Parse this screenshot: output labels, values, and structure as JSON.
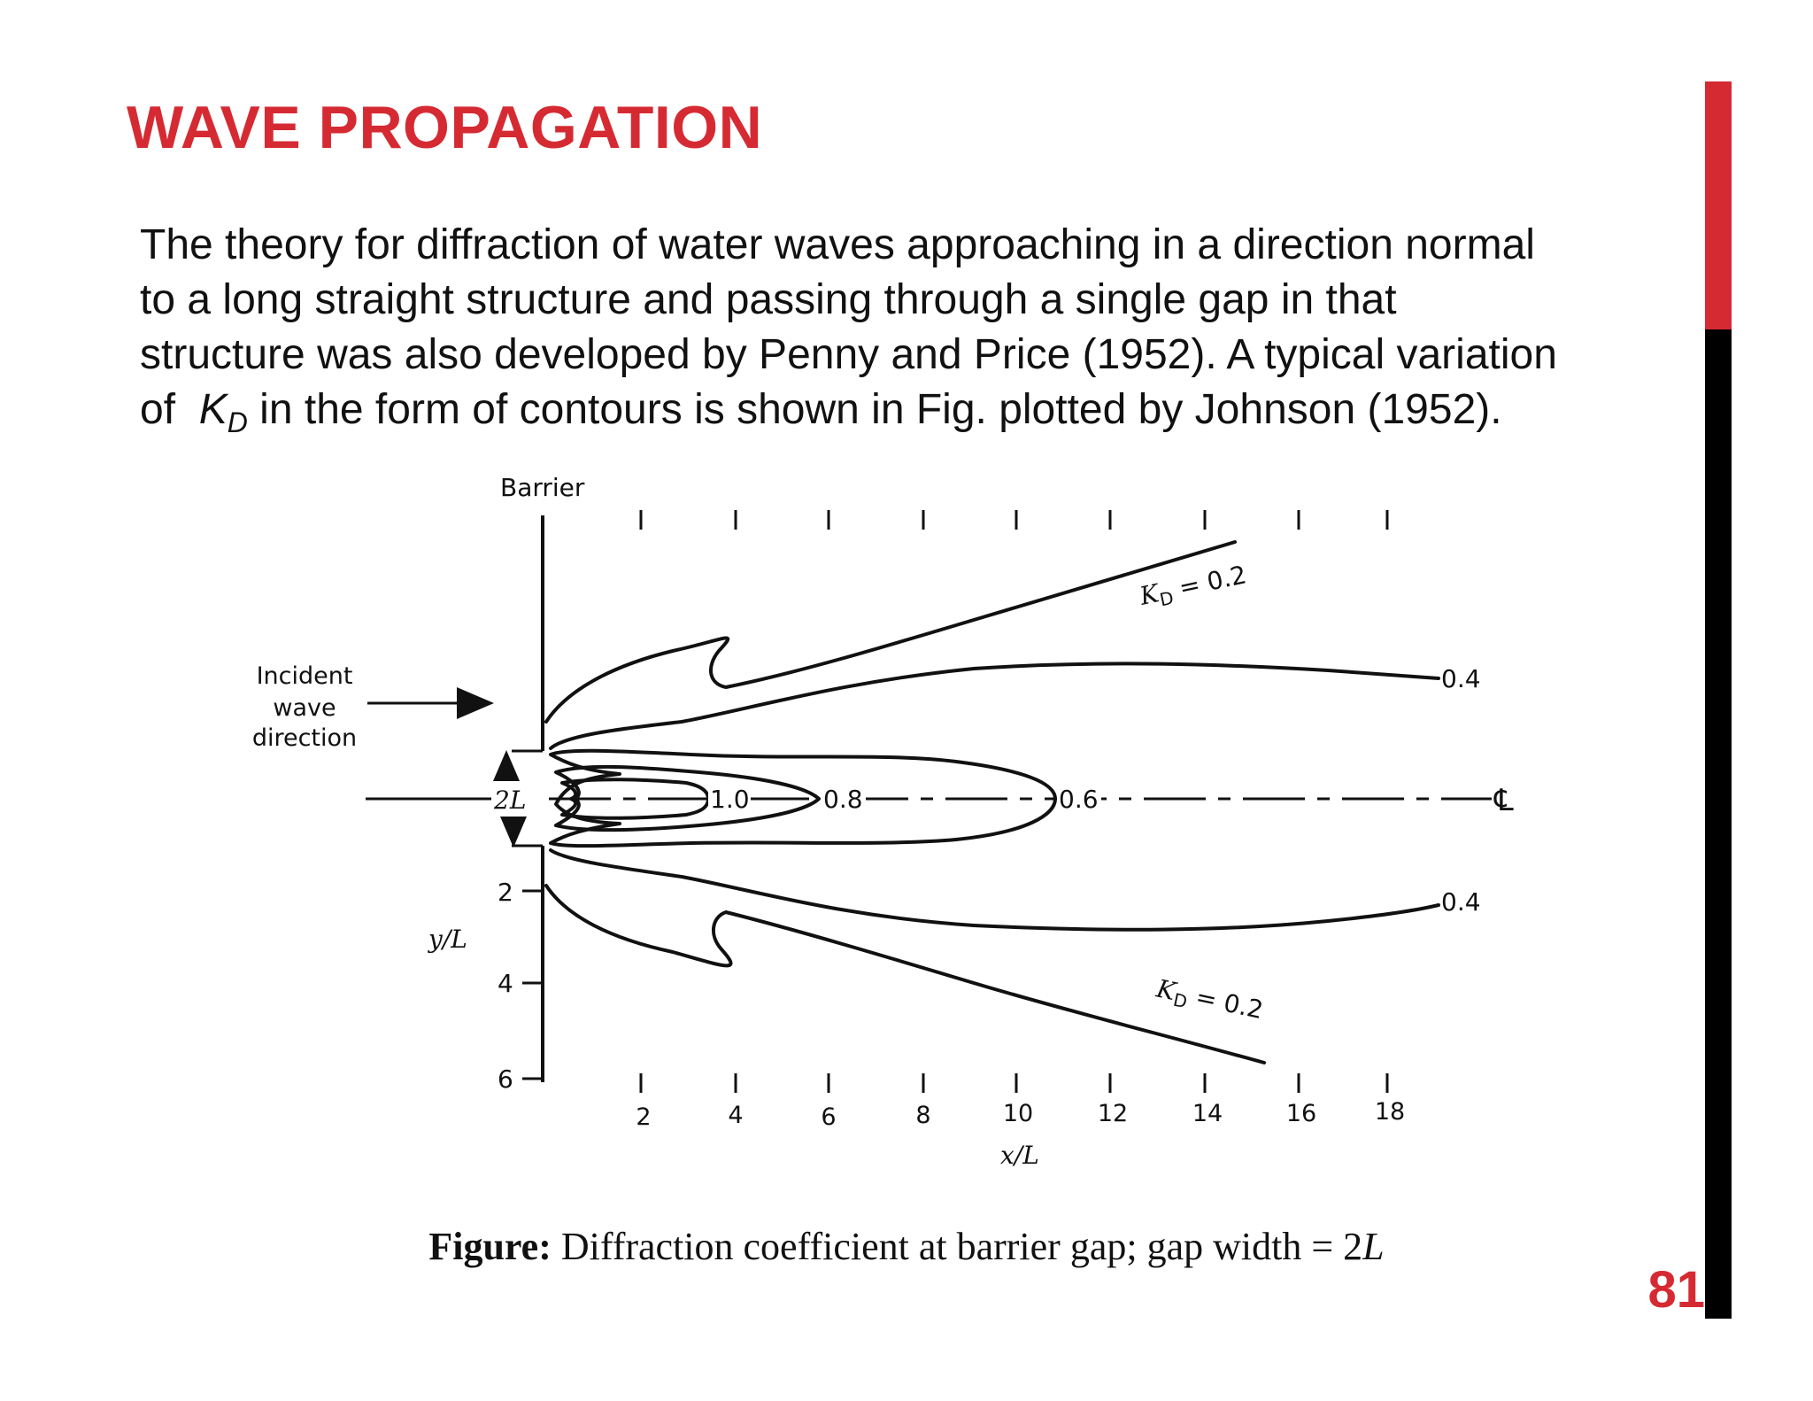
{
  "slide": {
    "title": "WAVE PROPAGATION",
    "body_line1": "The theory for diffraction of water waves approaching in a direction normal",
    "body_line2": "to a long straight structure and passing through a single gap in that",
    "body_line3": "structure was also developed by Penny and Price (1952). A typical variation",
    "body_line4_pre": "of  ",
    "body_k": "K",
    "body_sub": "D",
    "body_line4_post": " in the form of contours is shown in Fig.  plotted by Johnson (1952).",
    "page_number": "81",
    "accent_colors": {
      "red": "#d62a33",
      "black": "#000000"
    }
  },
  "figure": {
    "barrier_label": "Barrier",
    "incident_line1": "Incident",
    "incident_line2": "wave",
    "incident_line3": "direction",
    "gap_label": "2L",
    "centerline_symbol": "℄",
    "y_axis_label": "y/L",
    "x_axis_label": "x/L",
    "y_ticks": [
      "2",
      "4",
      "6"
    ],
    "x_ticks": [
      "2",
      "4",
      "6",
      "8",
      "10",
      "12",
      "14",
      "16",
      "18"
    ],
    "contour_labels": {
      "kd_upper": "K",
      "kd_upper_sub": "D",
      "kd_upper_val": " = 0.2",
      "kd_lower": "K",
      "kd_lower_sub": "D",
      "kd_lower_val": " = 0.2",
      "upper_04": "0.4",
      "lower_04": "0.4",
      "c10": "1.0",
      "c08": "0.8",
      "c06": "0.6"
    },
    "caption_bold": "Figure:",
    "caption_text": " Diffraction coefficient at barrier gap; gap width = 2",
    "caption_ital": "L"
  }
}
